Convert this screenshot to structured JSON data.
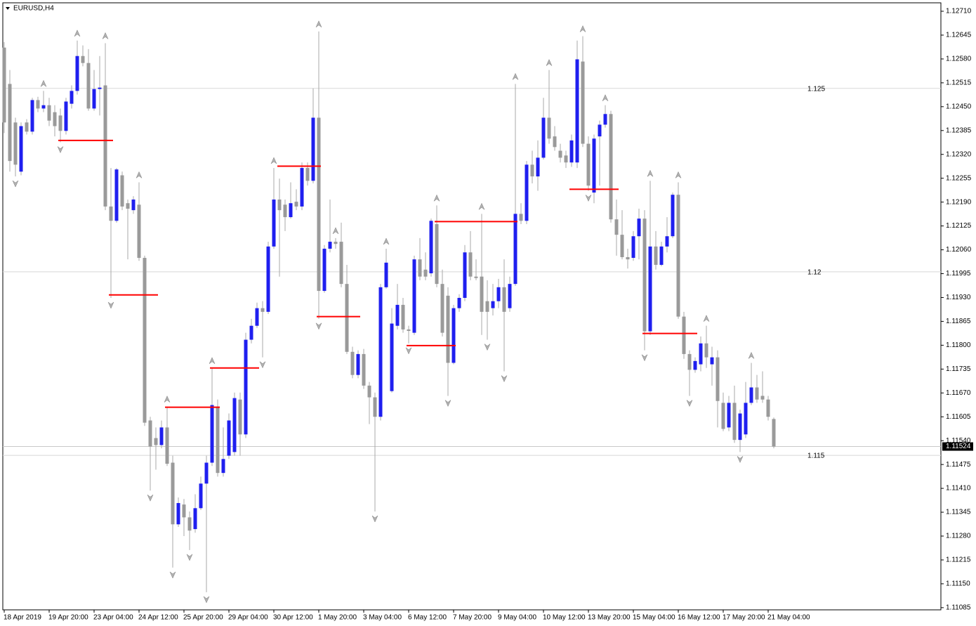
{
  "chart_data": {
    "type": "candlestick",
    "title": "EURUSD,H4",
    "current_price": 1.11524,
    "bull_color": "#1f1fef",
    "bear_color": "#9a9a9a",
    "wick_color": "#a8a8a8",
    "level_color": "#ff0000",
    "ylim": [
      1.11079,
      1.12733
    ],
    "yticks": [
      {
        "value": 1.1271,
        "label": "1.12710"
      },
      {
        "value": 1.12645,
        "label": "1.12645"
      },
      {
        "value": 1.1258,
        "label": "1.12580"
      },
      {
        "value": 1.12515,
        "label": "1.12515"
      },
      {
        "value": 1.1245,
        "label": "1.12450"
      },
      {
        "value": 1.12385,
        "label": "1.12385"
      },
      {
        "value": 1.1232,
        "label": "1.12320"
      },
      {
        "value": 1.12255,
        "label": "1.12255"
      },
      {
        "value": 1.1219,
        "label": "1.12190"
      },
      {
        "value": 1.12125,
        "label": "1.12125"
      },
      {
        "value": 1.1206,
        "label": "1.12060"
      },
      {
        "value": 1.11995,
        "label": "1.11995"
      },
      {
        "value": 1.1193,
        "label": "1.11930"
      },
      {
        "value": 1.11865,
        "label": "1.11865"
      },
      {
        "value": 1.118,
        "label": "1.11800"
      },
      {
        "value": 1.11735,
        "label": "1.11735"
      },
      {
        "value": 1.1167,
        "label": "1.11670"
      },
      {
        "value": 1.11605,
        "label": "1.11605"
      },
      {
        "value": 1.1154,
        "label": "1.11540"
      },
      {
        "value": 1.11475,
        "label": "1.11475"
      },
      {
        "value": 1.1141,
        "label": "1.11410"
      },
      {
        "value": 1.11345,
        "label": "1.11345"
      },
      {
        "value": 1.1128,
        "label": "1.11280"
      },
      {
        "value": 1.11215,
        "label": "1.11215"
      },
      {
        "value": 1.1115,
        "label": "1.11150"
      },
      {
        "value": 1.11085,
        "label": "1.11085"
      }
    ],
    "grid_levels": [
      1.125,
      1.12,
      1.115
    ],
    "categories": [
      "18 Apr 2019",
      null,
      null,
      null,
      null,
      null,
      null,
      null,
      "19 Apr 20:00",
      null,
      null,
      null,
      null,
      null,
      null,
      null,
      "23 Apr 04:00",
      null,
      null,
      null,
      null,
      null,
      null,
      null,
      "24 Apr 12:00",
      null,
      null,
      null,
      null,
      null,
      null,
      null,
      "25 Apr 20:00",
      null,
      null,
      null,
      null,
      null,
      null,
      null,
      "29 Apr 04:00",
      null,
      null,
      null,
      null,
      null,
      null,
      null,
      "30 Apr 12:00",
      null,
      null,
      null,
      null,
      null,
      null,
      null,
      "1 May 20:00",
      null,
      null,
      null,
      null,
      null,
      null,
      null,
      "3 May 04:00",
      null,
      null,
      null,
      null,
      null,
      null,
      null,
      "6 May 12:00",
      null,
      null,
      null,
      null,
      null,
      null,
      null,
      "7 May 20:00",
      null,
      null,
      null,
      null,
      null,
      null,
      null,
      "9 May 04:00",
      null,
      null,
      null,
      null,
      null,
      null,
      null,
      "10 May 12:00",
      null,
      null,
      null,
      null,
      null,
      null,
      null,
      "13 May 20:00",
      null,
      null,
      null,
      null,
      null,
      null,
      null,
      "15 May 04:00",
      null,
      null,
      null,
      null,
      null,
      null,
      null,
      "16 May 12:00",
      null,
      null,
      null,
      null,
      null,
      null,
      null,
      "17 May 20:00",
      null,
      null,
      null,
      null,
      null,
      null,
      null,
      "21 May 04:00",
      null
    ],
    "open": [
      1.12611,
      1.12512,
      1.12407,
      1.12273,
      1.12407,
      1.12382,
      1.12468,
      1.12445,
      1.12454,
      1.12435,
      1.12426,
      1.12384,
      1.12458,
      1.12493,
      1.12588,
      1.12569,
      1.12445,
      1.12498,
      1.12508,
      1.12178,
      1.12139,
      1.12263,
      1.12187,
      1.12168,
      1.12183,
      1.12038,
      1.11595,
      1.11547,
      1.11528,
      1.11576,
      1.1148,
      1.11312,
      1.11366,
      1.11331,
      1.11299,
      1.11356,
      1.11423,
      1.1148,
      1.11633,
      1.11452,
      1.11499,
      1.11509,
      1.11652,
      1.11557,
      1.11815,
      1.11853,
      1.11901,
      1.11891,
      1.12069,
      1.12197,
      1.12183,
      1.12149,
      1.12191,
      1.12178,
      1.12283,
      1.12248,
      1.1242,
      1.11948,
      1.12063,
      1.12082,
      1.12082,
      1.11967,
      1.11782,
      1.11719,
      1.11776,
      1.1169,
      1.11658,
      1.11605,
      1.11958,
      1.11675,
      1.11853,
      1.1191,
      1.11843,
      1.11834,
      1.12034,
      1.12006,
      1.11996,
      1.1213,
      1.11967,
      1.11935,
      1.11752,
      1.11901,
      1.11929,
      1.12053,
      1.11987,
      1.11987,
      1.1192,
      1.11901,
      1.1192,
      1.11958,
      1.11901,
      1.11967,
      1.12158,
      1.12139,
      1.12292,
      1.1226,
      1.12311,
      1.1242,
      1.12369,
      1.1233,
      1.12317,
      1.12298,
      1.12298,
      1.12573,
      1.12349,
      1.12216,
      1.12369,
      1.12401,
      1.1243,
      1.12143,
      1.12101,
      1.1204,
      1.12038,
      1.12097,
      1.12145,
      1.11838,
      1.12069,
      1.12019,
      1.12069,
      1.12097,
      1.1221,
      1.11878,
      1.11776,
      1.11733,
      1.11748,
      1.11805,
      1.11748,
      1.11767,
      1.11643,
      1.11576,
      1.11643,
      1.11542,
      1.11557,
      1.11643,
      1.11685,
      1.11662,
      1.11652,
      1.11599
    ],
    "high": [
      1.12626,
      1.1255,
      1.1242,
      1.12407,
      1.12416,
      1.12474,
      1.12477,
      1.12493,
      1.12474,
      1.12454,
      1.12445,
      1.12474,
      1.12508,
      1.1263,
      1.12617,
      1.12607,
      1.1255,
      1.12588,
      1.12623,
      1.12283,
      1.12283,
      1.12273,
      1.12197,
      1.12206,
      1.12244,
      1.12044,
      1.11605,
      1.11576,
      1.11595,
      1.11633,
      1.11499,
      1.11385,
      1.11381,
      1.11347,
      1.11394,
      1.11442,
      1.11499,
      1.11738,
      1.11652,
      1.11576,
      1.11614,
      1.11671,
      1.11671,
      1.11834,
      1.11872,
      1.11916,
      1.1192,
      1.12082,
      1.12283,
      1.12254,
      1.12197,
      1.12244,
      1.12225,
      1.12298,
      1.12298,
      1.125,
      1.12655,
      1.12073,
      1.12197,
      1.12092,
      1.12134,
      1.12019,
      1.11796,
      1.11786,
      1.1179,
      1.117,
      1.11671,
      1.11967,
      1.12063,
      1.11901,
      1.11967,
      1.11929,
      1.11853,
      1.12044,
      1.12092,
      1.12053,
      1.12145,
      1.12181,
      1.12006,
      1.11958,
      1.1191,
      1.11939,
      1.12073,
      1.12111,
      1.12034,
      1.12158,
      1.11977,
      1.11967,
      1.11981,
      1.12034,
      1.11987,
      1.12512,
      1.12187,
      1.12302,
      1.1233,
      1.12358,
      1.12474,
      1.1255,
      1.12397,
      1.12349,
      1.1233,
      1.12374,
      1.1263,
      1.12642,
      1.12369,
      1.12374,
      1.12412,
      1.12454,
      1.12439,
      1.12197,
      1.12168,
      1.12063,
      1.12111,
      1.12172,
      1.12168,
      1.12248,
      1.12111,
      1.12082,
      1.12149,
      1.12216,
      1.12244,
      1.11891,
      1.11786,
      1.11767,
      1.11824,
      1.11853,
      1.11796,
      1.11786,
      1.11671,
      1.11662,
      1.1169,
      1.11624,
      1.117,
      1.11752,
      1.11719,
      1.11729,
      1.11662,
      1.11603
    ],
    "low": [
      1.12378,
      1.12273,
      1.1226,
      1.12263,
      1.12374,
      1.12374,
      1.12435,
      1.12435,
      1.12397,
      1.12369,
      1.12353,
      1.12374,
      1.12445,
      1.12483,
      1.1256,
      1.12439,
      1.12439,
      1.12426,
      1.12168,
      1.11929,
      1.12134,
      1.12168,
      1.12034,
      1.12158,
      1.1203,
      1.1158,
      1.11404,
      1.11461,
      1.11519,
      1.11471,
      1.11194,
      1.11305,
      1.1128,
      1.11242,
      1.11289,
      1.11351,
      1.11127,
      1.11471,
      1.11442,
      1.11442,
      1.1149,
      1.11499,
      1.11499,
      1.11547,
      1.11805,
      1.11847,
      1.11767,
      1.11885,
      1.12063,
      1.11987,
      1.12111,
      1.12145,
      1.12168,
      1.12168,
      1.12235,
      1.12241,
      1.11872,
      1.11943,
      1.12053,
      1.12063,
      1.11958,
      1.11776,
      1.1171,
      1.1171,
      1.11681,
      1.11585,
      1.11347,
      1.11595,
      1.11954,
      1.11671,
      1.11843,
      1.11834,
      1.11805,
      1.11828,
      1.11977,
      1.11977,
      1.11987,
      1.11958,
      1.11824,
      1.11662,
      1.11748,
      1.11891,
      1.1192,
      1.11977,
      1.11977,
      1.11828,
      1.11815,
      1.11881,
      1.11901,
      1.11729,
      1.11891,
      1.11962,
      1.1213,
      1.1213,
      1.12241,
      1.12221,
      1.12306,
      1.12349,
      1.1233,
      1.12298,
      1.12283,
      1.12286,
      1.12283,
      1.1234,
      1.12221,
      1.12187,
      1.12235,
      1.12393,
      1.12134,
      1.12044,
      1.12034,
      1.12009,
      1.1203,
      1.12034,
      1.11786,
      1.11828,
      1.12006,
      1.12015,
      1.12053,
      1.12092,
      1.11872,
      1.11763,
      1.11662,
      1.11725,
      1.11729,
      1.11738,
      1.1169,
      1.11576,
      1.11566,
      1.11566,
      1.11534,
      1.11509,
      1.11547,
      1.11637,
      1.11643,
      1.11643,
      1.11595,
      1.11519
    ],
    "close": [
      1.12407,
      1.12302,
      1.12292,
      1.12397,
      1.12382,
      1.12468,
      1.12445,
      1.12454,
      1.12412,
      1.12397,
      1.12384,
      1.12464,
      1.12493,
      1.12588,
      1.12569,
      1.12445,
      1.12498,
      1.12502,
      1.12178,
      1.12139,
      1.12279,
      1.12178,
      1.12172,
      1.12197,
      1.12038,
      1.11589,
      1.11524,
      1.11528,
      1.11576,
      1.11477,
      1.11312,
      1.1137,
      1.11331,
      1.11295,
      1.11356,
      1.11423,
      1.1148,
      1.11637,
      1.11452,
      1.1149,
      1.11595,
      1.11656,
      1.11557,
      1.11815,
      1.11853,
      1.11901,
      1.11891,
      1.12069,
      1.12197,
      1.12168,
      1.12149,
      1.12187,
      1.12178,
      1.12283,
      1.12248,
      1.1242,
      1.11948,
      1.12063,
      1.12082,
      1.12076,
      1.11967,
      1.11782,
      1.11719,
      1.11776,
      1.1169,
      1.11658,
      1.11605,
      1.11958,
      1.12025,
      1.11859,
      1.1191,
      1.11843,
      1.11839,
      1.12034,
      1.11987,
      1.11987,
      1.12139,
      1.11967,
      1.11834,
      1.11752,
      1.11901,
      1.11929,
      1.12053,
      1.11987,
      1.11983,
      1.11891,
      1.11891,
      1.1192,
      1.11958,
      1.11891,
      1.11967,
      1.12158,
      1.12139,
      1.12292,
      1.1226,
      1.12311,
      1.1242,
      1.12363,
      1.1234,
      1.12311,
      1.12298,
      1.12358,
      1.12579,
      1.12349,
      1.12235,
      1.12363,
      1.12401,
      1.1243,
      1.12143,
      1.12101,
      1.1204,
      1.12034,
      1.12097,
      1.12145,
      1.11838,
      1.12069,
      1.12019,
      1.12069,
      1.12097,
      1.1221,
      1.11878,
      1.11776,
      1.11733,
      1.11757,
      1.11805,
      1.11767,
      1.11767,
      1.11648,
      1.11572,
      1.11643,
      1.11542,
      1.11614,
      1.11643,
      1.11685,
      1.11652,
      1.11652,
      1.11605,
      1.11524
    ],
    "fractals_up": [
      7,
      13,
      18,
      24,
      29,
      37,
      48,
      56,
      59,
      68,
      77,
      85,
      91,
      97,
      103,
      107,
      115,
      120,
      125,
      133
    ],
    "fractals_down": [
      2,
      10,
      19,
      26,
      30,
      33,
      36,
      46,
      56,
      66,
      72,
      79,
      86,
      89,
      104,
      114,
      122,
      131
    ],
    "levels": [
      {
        "price": 1.12358,
        "from": 10,
        "to": 19
      },
      {
        "price": 1.11937,
        "from": 19,
        "to": 27
      },
      {
        "price": 1.11631,
        "from": 29,
        "to": 38
      },
      {
        "price": 1.11738,
        "from": 37,
        "to": 45
      },
      {
        "price": 1.12288,
        "from": 49,
        "to": 56
      },
      {
        "price": 1.11878,
        "from": 56,
        "to": 63
      },
      {
        "price": 1.11799,
        "from": 72,
        "to": 80
      },
      {
        "price": 1.12137,
        "from": 77,
        "to": 91
      },
      {
        "price": 1.12225,
        "from": 101,
        "to": 109
      },
      {
        "price": 1.11832,
        "from": 114,
        "to": 123
      }
    ]
  }
}
